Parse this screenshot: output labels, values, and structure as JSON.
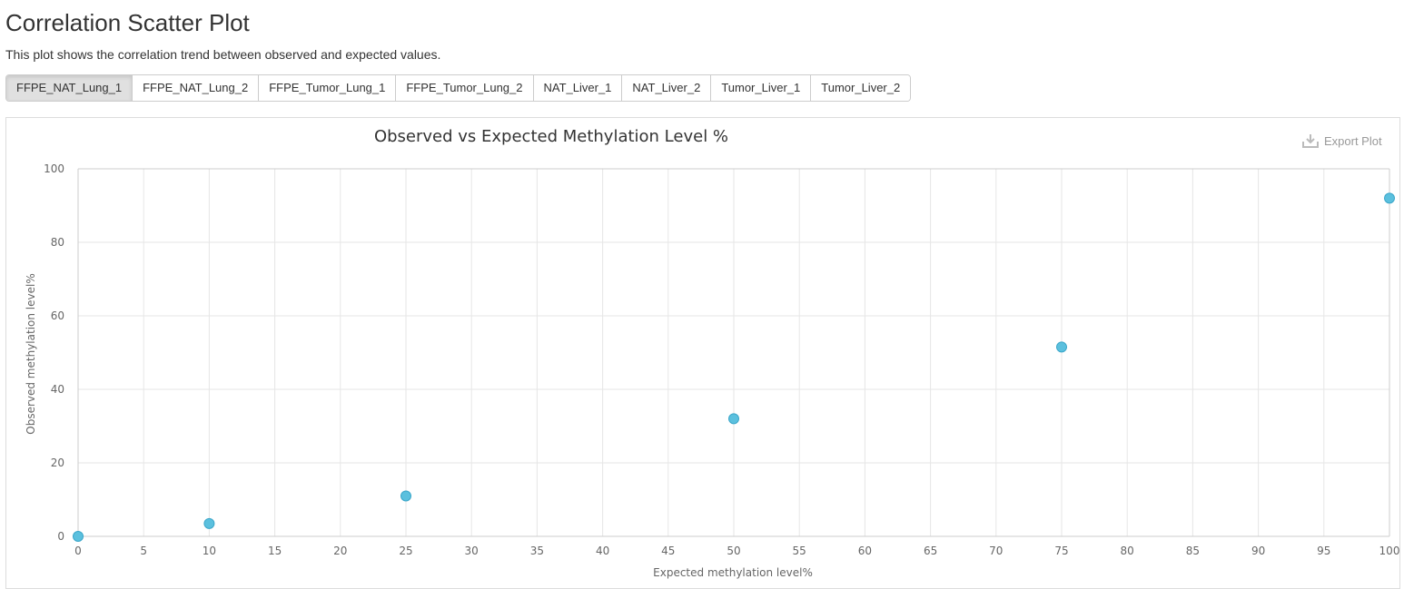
{
  "header": {
    "title": "Correlation Scatter Plot",
    "description": "This plot shows the correlation trend between observed and expected values."
  },
  "tabs": [
    {
      "label": "FFPE_NAT_Lung_1",
      "active": true
    },
    {
      "label": "FFPE_NAT_Lung_2",
      "active": false
    },
    {
      "label": "FFPE_Tumor_Lung_1",
      "active": false
    },
    {
      "label": "FFPE_Tumor_Lung_2",
      "active": false
    },
    {
      "label": "NAT_Liver_1",
      "active": false
    },
    {
      "label": "NAT_Liver_2",
      "active": false
    },
    {
      "label": "Tumor_Liver_1",
      "active": false
    },
    {
      "label": "Tumor_Liver_2",
      "active": false
    }
  ],
  "export": {
    "label": "Export Plot",
    "icon": "download-icon"
  },
  "colors": {
    "point": "#5bc0de",
    "point_stroke": "#3aa6c9",
    "grid": "#e6e6e6",
    "axis": "#cccccc"
  },
  "chart_data": {
    "type": "scatter",
    "title": "Observed vs Expected Methylation Level %",
    "xlabel": "Expected methylation level%",
    "ylabel": "Observed methylation level%",
    "xlim": [
      0,
      100
    ],
    "ylim": [
      0,
      100
    ],
    "x_ticks": [
      0,
      5,
      10,
      15,
      20,
      25,
      30,
      35,
      40,
      45,
      50,
      55,
      60,
      65,
      70,
      75,
      80,
      85,
      90,
      95,
      100
    ],
    "y_ticks": [
      0,
      20,
      40,
      60,
      80,
      100
    ],
    "grid": true,
    "legend": "none",
    "points": [
      {
        "x": 0,
        "y": 0
      },
      {
        "x": 10,
        "y": 3.5
      },
      {
        "x": 25,
        "y": 11
      },
      {
        "x": 50,
        "y": 32
      },
      {
        "x": 75,
        "y": 51.5
      },
      {
        "x": 100,
        "y": 92
      }
    ]
  }
}
